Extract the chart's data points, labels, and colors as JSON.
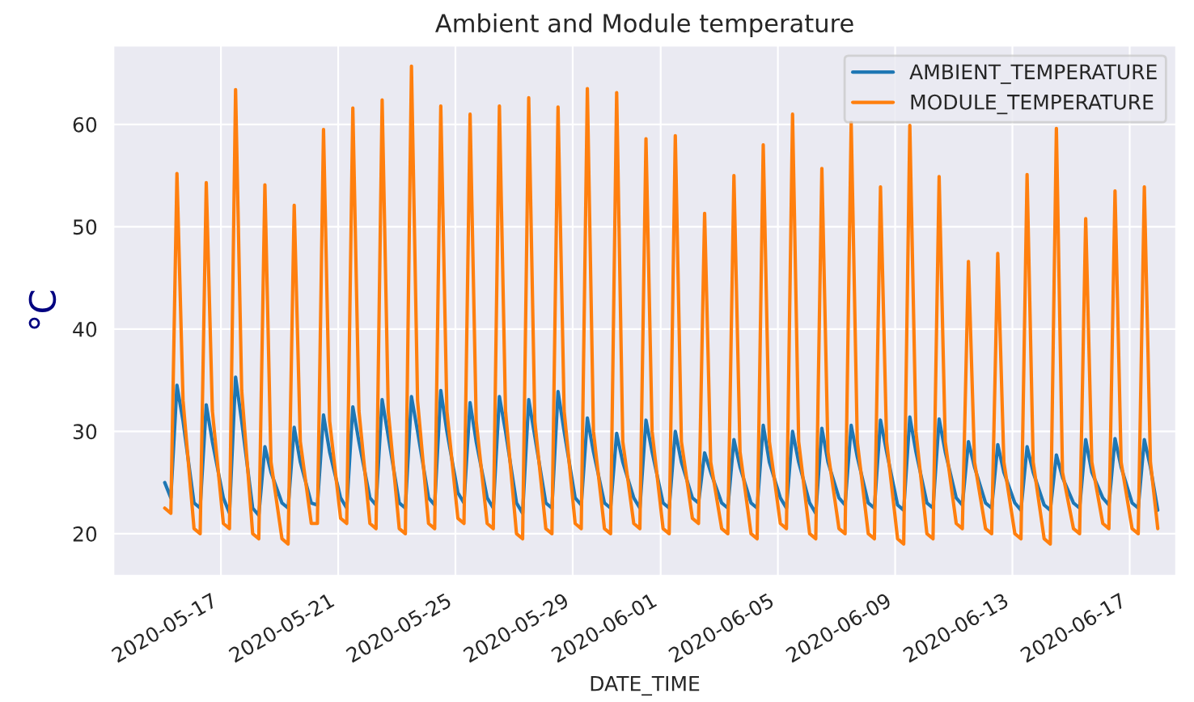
{
  "chart_data": {
    "type": "line",
    "title": "Ambient and Module temperature",
    "xlabel": "DATE_TIME",
    "ylabel": "°C",
    "x": [
      "2020-05-15T02:00",
      "2020-05-15T07:00",
      "2020-05-15T12:00",
      "2020-05-15T17:00",
      "2020-05-16T02:00",
      "2020-05-16T07:00",
      "2020-05-16T12:00",
      "2020-05-16T17:00",
      "2020-05-17T02:00",
      "2020-05-17T07:00",
      "2020-05-17T12:00",
      "2020-05-17T17:00",
      "2020-05-18T02:00",
      "2020-05-18T07:00",
      "2020-05-18T12:00",
      "2020-05-18T17:00",
      "2020-05-19T02:00",
      "2020-05-19T07:00",
      "2020-05-19T12:00",
      "2020-05-19T17:00",
      "2020-05-20T02:00",
      "2020-05-20T07:00",
      "2020-05-20T12:00",
      "2020-05-20T17:00",
      "2020-05-21T02:00",
      "2020-05-21T07:00",
      "2020-05-21T12:00",
      "2020-05-21T17:00",
      "2020-05-22T02:00",
      "2020-05-22T07:00",
      "2020-05-22T12:00",
      "2020-05-22T17:00",
      "2020-05-23T02:00",
      "2020-05-23T07:00",
      "2020-05-23T12:00",
      "2020-05-23T17:00",
      "2020-05-24T02:00",
      "2020-05-24T07:00",
      "2020-05-24T12:00",
      "2020-05-24T17:00",
      "2020-05-25T02:00",
      "2020-05-25T07:00",
      "2020-05-25T12:00",
      "2020-05-25T17:00",
      "2020-05-26T02:00",
      "2020-05-26T07:00",
      "2020-05-26T12:00",
      "2020-05-26T17:00",
      "2020-05-27T02:00",
      "2020-05-27T07:00",
      "2020-05-27T12:00",
      "2020-05-27T17:00",
      "2020-05-28T02:00",
      "2020-05-28T07:00",
      "2020-05-28T12:00",
      "2020-05-28T17:00",
      "2020-05-29T02:00",
      "2020-05-29T07:00",
      "2020-05-29T12:00",
      "2020-05-29T17:00",
      "2020-05-30T02:00",
      "2020-05-30T07:00",
      "2020-05-30T12:00",
      "2020-05-30T17:00",
      "2020-05-31T02:00",
      "2020-05-31T07:00",
      "2020-05-31T12:00",
      "2020-05-31T17:00",
      "2020-06-01T02:00",
      "2020-06-01T07:00",
      "2020-06-01T12:00",
      "2020-06-01T17:00",
      "2020-06-02T02:00",
      "2020-06-02T07:00",
      "2020-06-02T12:00",
      "2020-06-02T17:00",
      "2020-06-03T02:00",
      "2020-06-03T07:00",
      "2020-06-03T12:00",
      "2020-06-03T17:00",
      "2020-06-04T02:00",
      "2020-06-04T07:00",
      "2020-06-04T12:00",
      "2020-06-04T17:00",
      "2020-06-05T02:00",
      "2020-06-05T07:00",
      "2020-06-05T12:00",
      "2020-06-05T17:00",
      "2020-06-06T02:00",
      "2020-06-06T07:00",
      "2020-06-06T12:00",
      "2020-06-06T17:00",
      "2020-06-07T02:00",
      "2020-06-07T07:00",
      "2020-06-07T12:00",
      "2020-06-07T17:00",
      "2020-06-08T02:00",
      "2020-06-08T07:00",
      "2020-06-08T12:00",
      "2020-06-08T17:00",
      "2020-06-09T02:00",
      "2020-06-09T07:00",
      "2020-06-09T12:00",
      "2020-06-09T17:00",
      "2020-06-10T02:00",
      "2020-06-10T07:00",
      "2020-06-10T12:00",
      "2020-06-10T17:00",
      "2020-06-11T02:00",
      "2020-06-11T07:00",
      "2020-06-11T12:00",
      "2020-06-11T17:00",
      "2020-06-12T02:00",
      "2020-06-12T07:00",
      "2020-06-12T12:00",
      "2020-06-12T17:00",
      "2020-06-13T02:00",
      "2020-06-13T07:00",
      "2020-06-13T12:00",
      "2020-06-13T17:00",
      "2020-06-14T02:00",
      "2020-06-14T07:00",
      "2020-06-14T12:00",
      "2020-06-14T17:00",
      "2020-06-15T02:00",
      "2020-06-15T07:00",
      "2020-06-15T12:00",
      "2020-06-15T17:00",
      "2020-06-16T02:00",
      "2020-06-16T07:00",
      "2020-06-16T12:00",
      "2020-06-16T17:00",
      "2020-06-17T02:00",
      "2020-06-17T07:00",
      "2020-06-17T12:00",
      "2020-06-17T17:00",
      "2020-06-17T23:00"
    ],
    "series": [
      {
        "name": "AMBIENT_TEMPERATURE",
        "color": "#1f77b4",
        "values": [
          25,
          23.5,
          34.5,
          31,
          23,
          22.5,
          32.6,
          29,
          23.5,
          22,
          35.3,
          31,
          22.5,
          21.8,
          28.5,
          26,
          23,
          22.5,
          30.4,
          27,
          23,
          22.8,
          31.6,
          28,
          23.5,
          22.5,
          32.4,
          29,
          23.5,
          22.8,
          33.1,
          29.5,
          23,
          22.5,
          33.4,
          30,
          23.5,
          22.8,
          34.0,
          30,
          24,
          23,
          32.8,
          29,
          23.5,
          22.5,
          33.4,
          30,
          23,
          22,
          33.1,
          29.5,
          23,
          22.5,
          33.9,
          30,
          23.5,
          22.8,
          31.3,
          28,
          23,
          22.5,
          29.8,
          27,
          23.5,
          22.5,
          31.1,
          28,
          23,
          22.5,
          30.0,
          27,
          23.5,
          23,
          27.9,
          26,
          23,
          22.5,
          29.2,
          26.5,
          23,
          22.5,
          30.6,
          27,
          23.5,
          22.5,
          30.0,
          27,
          23,
          22,
          30.3,
          27,
          23.5,
          22.8,
          30.6,
          27.5,
          23,
          22.5,
          31.1,
          28,
          22.8,
          22.3,
          31.4,
          28,
          23,
          22.5,
          31.2,
          28,
          23.5,
          22.8,
          29.0,
          26.5,
          23,
          22.5,
          28.7,
          26,
          23,
          22.3,
          28.5,
          26,
          22.8,
          22.3,
          27.7,
          25.5,
          23,
          22.5,
          29.2,
          26,
          23.5,
          22.8,
          29.3,
          26.5,
          23,
          22.5,
          29.2,
          26.5,
          22.3
        ]
      },
      {
        "name": "MODULE_TEMPERATURE",
        "color": "#ff7f0e",
        "values": [
          22.5,
          22,
          55.2,
          33,
          20.5,
          20,
          54.3,
          32,
          21,
          20.5,
          63.4,
          34,
          20,
          19.5,
          54.1,
          27,
          19.5,
          19,
          52.1,
          29,
          21,
          21,
          59.5,
          31,
          21.5,
          21,
          61.6,
          32,
          21,
          20.5,
          62.4,
          32,
          20.5,
          20,
          65.7,
          33,
          21,
          20.5,
          61.8,
          32,
          21.5,
          21,
          61.0,
          31,
          21,
          20.5,
          61.8,
          32,
          20,
          19.5,
          62.6,
          31,
          20.5,
          20,
          61.7,
          32,
          21,
          20.5,
          63.5,
          30,
          20.5,
          20,
          63.1,
          29,
          21,
          20.5,
          58.6,
          30,
          20.5,
          20,
          58.9,
          29,
          21.5,
          21,
          51.3,
          27,
          20.5,
          20,
          55.0,
          28,
          20,
          19.5,
          58.0,
          29,
          21,
          20.5,
          61.0,
          29,
          20,
          19.5,
          55.7,
          28,
          20.5,
          20,
          60.2,
          29,
          20,
          19.5,
          53.9,
          29,
          19.5,
          19,
          59.9,
          30,
          20,
          19.5,
          54.9,
          29,
          21,
          20.5,
          46.6,
          27,
          20.5,
          20,
          47.4,
          27,
          20,
          19.5,
          55.1,
          27,
          19.5,
          19,
          59.6,
          26,
          20.5,
          20,
          50.8,
          27,
          21,
          20.5,
          53.5,
          27,
          20.5,
          20,
          53.9,
          27,
          20.5
        ]
      }
    ],
    "xlim": [
      "2020-05-13T08:00",
      "2020-06-18T14:00"
    ],
    "xticks": [
      "2020-05-17",
      "2020-05-21",
      "2020-05-25",
      "2020-05-29",
      "2020-06-01",
      "2020-06-05",
      "2020-06-09",
      "2020-06-13",
      "2020-06-17"
    ],
    "ylim": [
      15.9,
      67.7
    ],
    "yticks": [
      20,
      30,
      40,
      50,
      60
    ],
    "grid": true,
    "legend": "top right",
    "marker": "none",
    "line_style": "solid"
  }
}
